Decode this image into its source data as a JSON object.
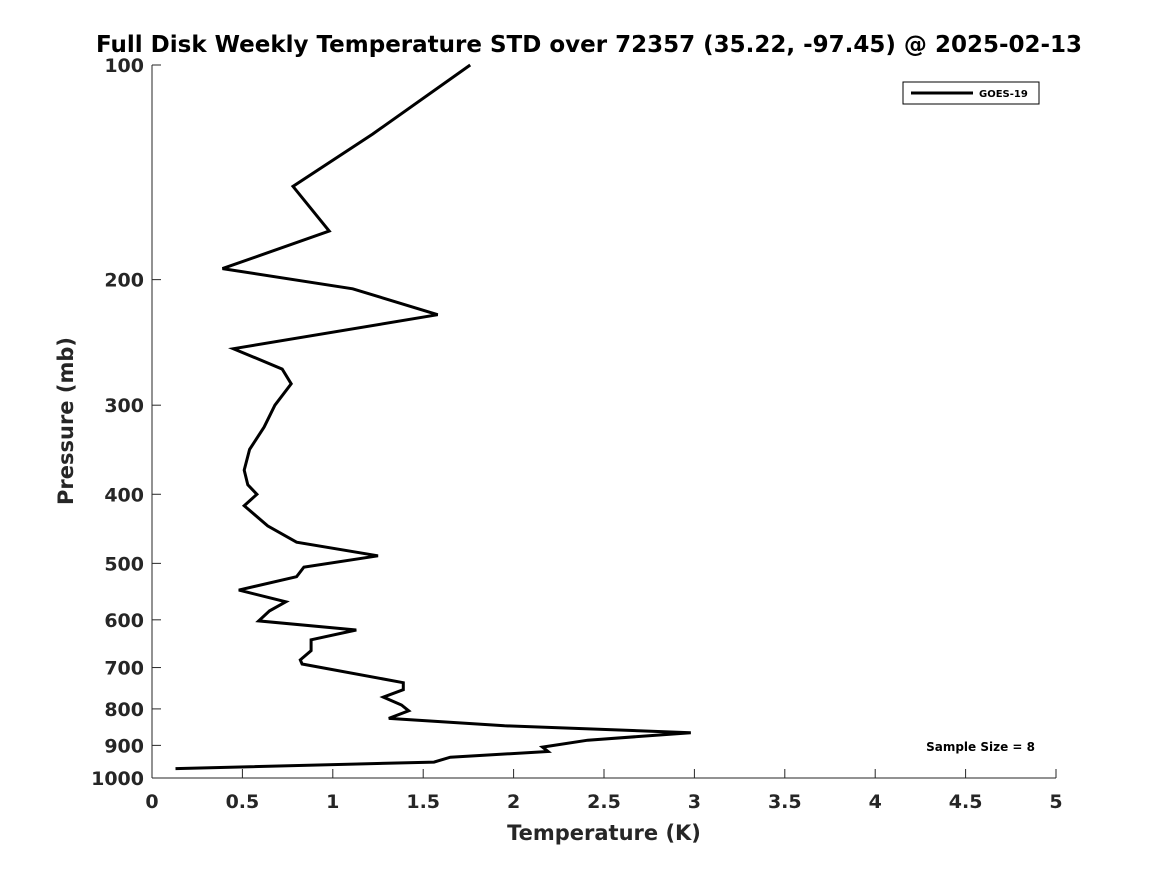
{
  "chart_data": {
    "type": "line",
    "title": "Full Disk Weekly Temperature STD over 72357 (35.22, -97.45) @ 2025-02-13",
    "xlabel": "Temperature (K)",
    "ylabel": "Pressure (mb)",
    "xlim": [
      0,
      5
    ],
    "ylim": [
      100,
      1000
    ],
    "y_scale": "log",
    "y_reversed": true,
    "x_ticks": [
      "0",
      "0.5",
      "1",
      "1.5",
      "2",
      "2.5",
      "3",
      "3.5",
      "4",
      "4.5",
      "5"
    ],
    "y_ticks": [
      "100",
      "200",
      "300",
      "400",
      "500",
      "600",
      "700",
      "800",
      "900",
      "1000"
    ],
    "grid": false,
    "legend_position": "top-right",
    "annotation": "Sample Size = 8",
    "series": [
      {
        "name": "GOES-19",
        "color": "#000000",
        "points": [
          [
            1.76,
            100
          ],
          [
            1.22,
            125
          ],
          [
            0.78,
            148
          ],
          [
            0.98,
            171
          ],
          [
            0.39,
            193
          ],
          [
            1.11,
            206
          ],
          [
            1.58,
            224
          ],
          [
            0.45,
            250
          ],
          [
            0.72,
            267
          ],
          [
            0.77,
            280
          ],
          [
            0.68,
            300
          ],
          [
            0.62,
            322
          ],
          [
            0.54,
            346
          ],
          [
            0.51,
            370
          ],
          [
            0.53,
            388
          ],
          [
            0.58,
            400
          ],
          [
            0.51,
            415
          ],
          [
            0.64,
            443
          ],
          [
            0.8,
            467
          ],
          [
            1.25,
            488
          ],
          [
            0.84,
            506
          ],
          [
            0.8,
            522
          ],
          [
            0.48,
            545
          ],
          [
            0.74,
            566
          ],
          [
            0.65,
            583
          ],
          [
            0.59,
            602
          ],
          [
            1.13,
            620
          ],
          [
            0.88,
            640
          ],
          [
            0.88,
            663
          ],
          [
            0.82,
            683
          ],
          [
            0.83,
            692
          ],
          [
            1.39,
            735
          ],
          [
            1.39,
            752
          ],
          [
            1.28,
            770
          ],
          [
            1.38,
            790
          ],
          [
            1.42,
            805
          ],
          [
            1.31,
            825
          ],
          [
            1.95,
            845
          ],
          [
            2.98,
            864
          ],
          [
            2.41,
            885
          ],
          [
            2.16,
            905
          ],
          [
            2.19,
            918
          ],
          [
            1.65,
            935
          ],
          [
            1.56,
            950
          ],
          [
            0.13,
            970
          ]
        ]
      }
    ]
  }
}
